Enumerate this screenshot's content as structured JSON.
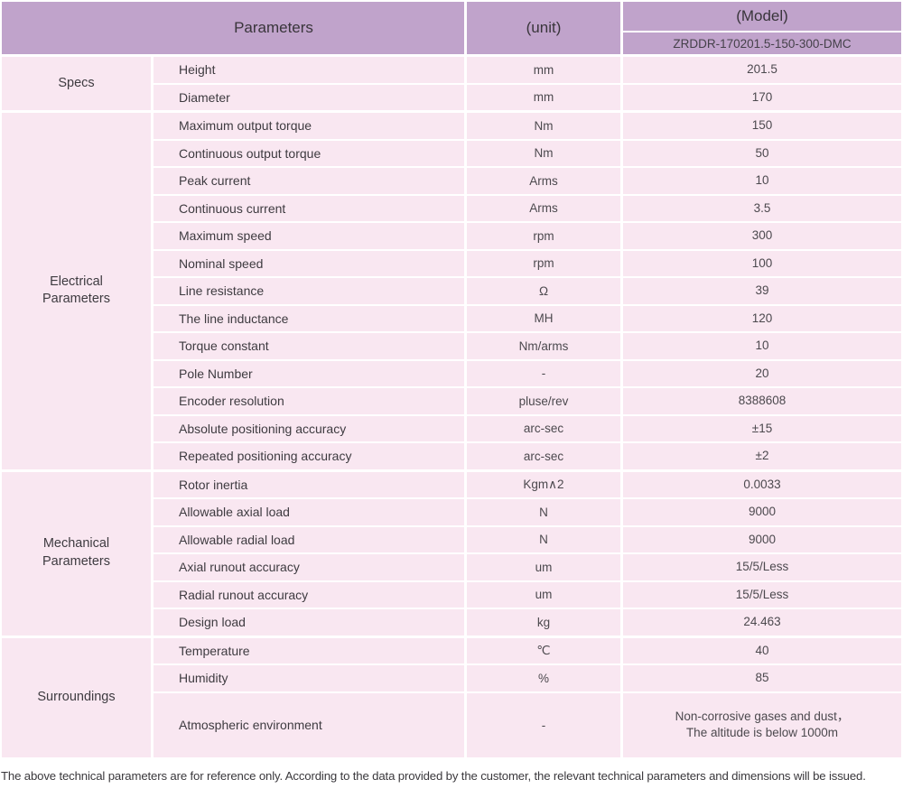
{
  "colors": {
    "header_bg": "#c0a3cb",
    "row_bg": "#f9e7f1",
    "text_dark": "#3e3b40",
    "text_mid": "#4c494e"
  },
  "header": {
    "parameters_label": "Parameters",
    "unit_label": "(unit)",
    "model_label": "(Model)",
    "model_value": "ZRDDR-170201.5-150-300-DMC"
  },
  "sections": [
    {
      "group": "Specs",
      "rows": [
        {
          "name": "Height",
          "unit": "mm",
          "value": "201.5"
        },
        {
          "name": "Diameter",
          "unit": "mm",
          "value": "170"
        }
      ]
    },
    {
      "group": "Electrical\nParameters",
      "rows": [
        {
          "name": "Maximum output torque",
          "unit": "Nm",
          "value": "150"
        },
        {
          "name": "Continuous output torque",
          "unit": "Nm",
          "value": "50"
        },
        {
          "name": "Peak current",
          "unit": "Arms",
          "value": "10"
        },
        {
          "name": "Continuous current",
          "unit": "Arms",
          "value": "3.5"
        },
        {
          "name": "Maximum speed",
          "unit": "rpm",
          "value": "300"
        },
        {
          "name": "Nominal speed",
          "unit": "rpm",
          "value": "100"
        },
        {
          "name": "Line resistance",
          "unit": "Ω",
          "value": "39"
        },
        {
          "name": "The line inductance",
          "unit": "MH",
          "value": "120"
        },
        {
          "name": "Torque constant",
          "unit": "Nm/arms",
          "value": "10"
        },
        {
          "name": "Pole Number",
          "unit": "-",
          "value": "20"
        },
        {
          "name": "Encoder resolution",
          "unit": "pluse/rev",
          "value": "8388608"
        },
        {
          "name": "Absolute positioning accuracy",
          "unit": "arc-sec",
          "value": "±15"
        },
        {
          "name": "Repeated positioning accuracy",
          "unit": "arc-sec",
          "value": "±2"
        }
      ]
    },
    {
      "group": "Mechanical\nParameters",
      "rows": [
        {
          "name": "Rotor inertia",
          "unit": "Kgm∧2",
          "value": "0.0033"
        },
        {
          "name": "Allowable axial load",
          "unit": "N",
          "value": "9000"
        },
        {
          "name": "Allowable radial load",
          "unit": "N",
          "value": "9000"
        },
        {
          "name": "Axial runout accuracy",
          "unit": "um",
          "value": "15/5/Less"
        },
        {
          "name": "Radial runout accuracy",
          "unit": "um",
          "value": "15/5/Less"
        },
        {
          "name": "Design load",
          "unit": "kg",
          "value": "24.463"
        }
      ]
    },
    {
      "group": "Surroundings",
      "rows": [
        {
          "name": "Temperature",
          "unit": "℃",
          "value": "40"
        },
        {
          "name": "Humidity",
          "unit": "%",
          "value": "85"
        },
        {
          "name": "Atmospheric environment",
          "unit": "-",
          "value": "Non-corrosive gases and dust，\nThe altitude is below 1000m"
        }
      ]
    }
  ],
  "footer_note": "The above technical parameters are for reference only. According to the data provided by the customer, the relevant technical parameters and dimensions will be issued."
}
